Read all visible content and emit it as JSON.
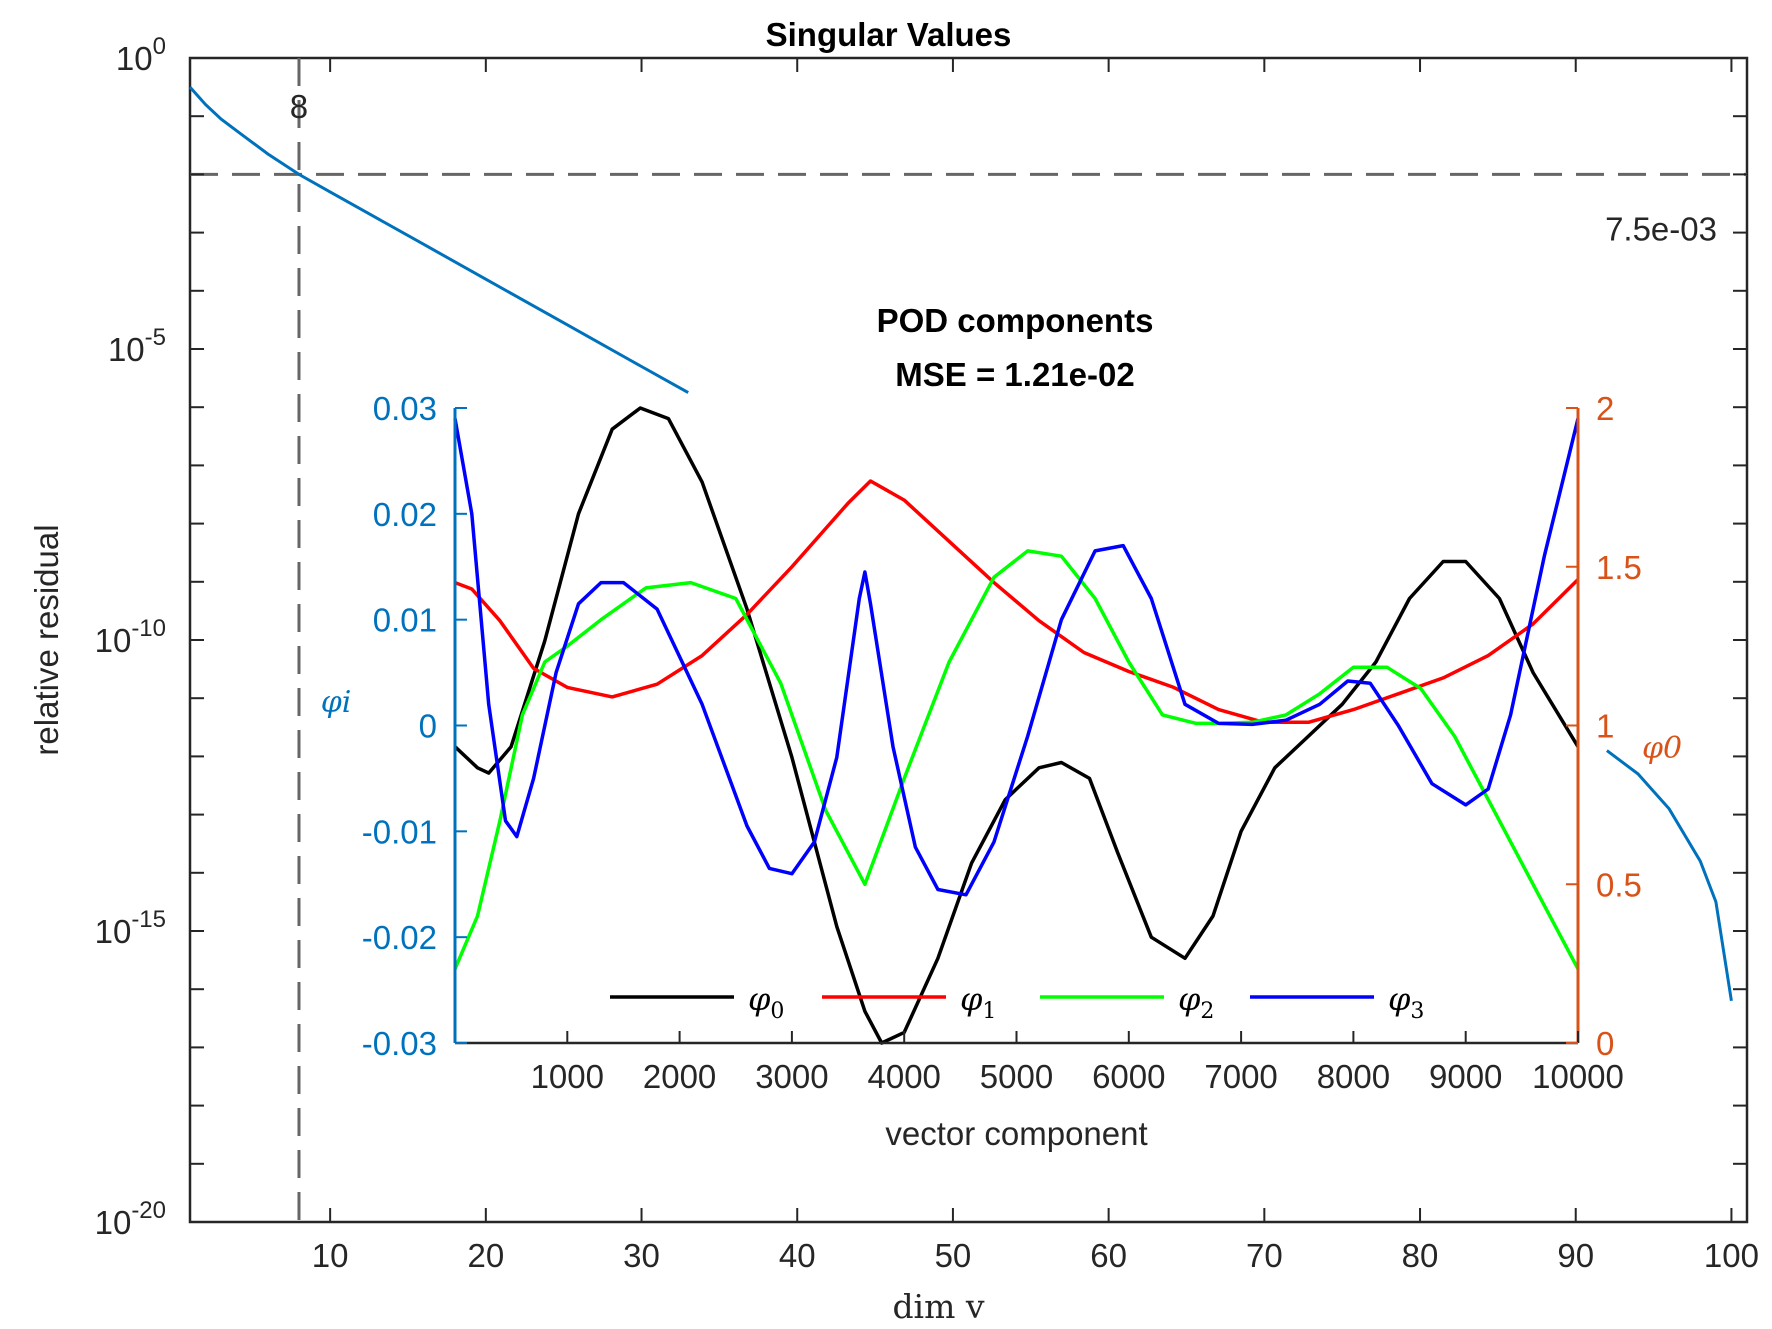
{
  "chart_data": [
    {
      "type": "line",
      "title": "Singular Values",
      "xlabel": "dim v",
      "ylabel": "relative residual",
      "xlim": [
        1,
        101
      ],
      "ylim_log10": [
        -20,
        0
      ],
      "yscale": "log",
      "grid": false,
      "xticks": [
        10,
        20,
        30,
        40,
        50,
        60,
        70,
        80,
        90,
        100
      ],
      "yticks": [
        {
          "base": "10",
          "exp": "0",
          "value": 1
        },
        {
          "base": "10",
          "exp": "-5",
          "value": 1e-05
        },
        {
          "base": "10",
          "exp": "-10",
          "value": 1e-10
        },
        {
          "base": "10",
          "exp": "-15",
          "value": 1e-15
        },
        {
          "base": "10",
          "exp": "-20",
          "value": 1e-20
        }
      ],
      "series": [
        {
          "color": "#0072BD",
          "x": [
            1,
            2,
            3,
            4,
            5,
            6,
            8,
            10,
            13,
            16,
            20,
            25,
            30,
            33
          ],
          "log10_y": [
            -0.5,
            -0.8,
            -1.05,
            -1.25,
            -1.45,
            -1.65,
            -2.0,
            -2.3,
            -2.75,
            -3.2,
            -3.8,
            -4.55,
            -5.3,
            -5.75
          ]
        },
        {
          "color": "#0072BD",
          "x": [
            92,
            94,
            96,
            98,
            99,
            100
          ],
          "log10_y": [
            -11.9,
            -12.3,
            -12.9,
            -13.8,
            -14.5,
            -16.2
          ]
        }
      ],
      "threshold": {
        "value_label": "7.5e-03",
        "log10_y": -2.0
      },
      "marker": {
        "label": "8",
        "x": 8
      }
    },
    {
      "type": "line",
      "title_line1": "POD components",
      "title_line2": "MSE = 1.21e-02",
      "xlabel": "vector component",
      "ylabel_left": "φi",
      "ylabel_right": "φ0",
      "xlim": [
        0,
        10000
      ],
      "ylim_left": [
        -0.03,
        0.03
      ],
      "ylim_right": [
        0,
        2
      ],
      "xticks": [
        1000,
        2000,
        3000,
        4000,
        5000,
        6000,
        7000,
        8000,
        9000,
        10000
      ],
      "yticks_left": [
        "-0.03",
        "-0.02",
        "-0.01",
        "0",
        "0.01",
        "0.02",
        "0.03"
      ],
      "yticks_right": [
        "0",
        "0.5",
        "1",
        "1.5",
        "2"
      ],
      "left_color": "#0072BD",
      "right_color": "#D95319",
      "legend": {
        "position": "bottom",
        "entries": [
          {
            "base": "φ",
            "sub": "0",
            "color": "#000000"
          },
          {
            "base": "φ",
            "sub": "1",
            "color": "#FF0000"
          },
          {
            "base": "φ",
            "sub": "2",
            "color": "#00FF00"
          },
          {
            "base": "φ",
            "sub": "3",
            "color": "#0000FF"
          }
        ]
      },
      "series": [
        {
          "color": "#000000",
          "x": [
            0,
            200,
            300,
            500,
            800,
            1100,
            1400,
            1650,
            1900,
            2200,
            2600,
            3000,
            3400,
            3650,
            3800,
            4000,
            4300,
            4600,
            4900,
            5200,
            5400,
            5650,
            5900,
            6200,
            6500,
            6750,
            7000,
            7300,
            7600,
            7900,
            8200,
            8500,
            8800,
            9000,
            9300,
            9600,
            10000
          ],
          "y": [
            -0.002,
            -0.004,
            -0.0045,
            -0.002,
            0.008,
            0.02,
            0.028,
            0.03,
            0.029,
            0.023,
            0.011,
            -0.003,
            -0.019,
            -0.027,
            -0.03,
            -0.029,
            -0.022,
            -0.013,
            -0.007,
            -0.004,
            -0.0035,
            -0.005,
            -0.012,
            -0.02,
            -0.022,
            -0.018,
            -0.01,
            -0.004,
            -0.001,
            0.002,
            0.006,
            0.012,
            0.0155,
            0.0155,
            0.012,
            0.005,
            -0.002
          ]
        },
        {
          "color": "#FF0000",
          "x": [
            0,
            150,
            400,
            700,
            1000,
            1400,
            1800,
            2200,
            2600,
            3000,
            3300,
            3500,
            3700,
            4000,
            4400,
            4800,
            5200,
            5600,
            6000,
            6400,
            6800,
            7200,
            7600,
            8000,
            8400,
            8800,
            9200,
            9600,
            10000
          ],
          "y": [
            1.45,
            1.43,
            1.33,
            1.18,
            1.12,
            1.09,
            1.13,
            1.22,
            1.35,
            1.5,
            1.62,
            1.7,
            1.77,
            1.71,
            1.58,
            1.45,
            1.33,
            1.23,
            1.17,
            1.12,
            1.05,
            1.01,
            1.01,
            1.05,
            1.1,
            1.15,
            1.22,
            1.32,
            1.46
          ]
        },
        {
          "color": "#00FF00",
          "x": [
            0,
            200,
            400,
            600,
            800,
            1000,
            1300,
            1700,
            2100,
            2500,
            2900,
            3300,
            3650,
            4000,
            4400,
            4800,
            5100,
            5400,
            5700,
            6000,
            6300,
            6600,
            6800,
            7100,
            7400,
            7700,
            8000,
            8300,
            8600,
            8900,
            9200,
            9500,
            9800,
            10000
          ],
          "y": [
            -0.023,
            -0.018,
            -0.009,
            0.001,
            0.006,
            0.0075,
            0.01,
            0.013,
            0.0135,
            0.012,
            0.004,
            -0.008,
            -0.015,
            -0.005,
            0.006,
            0.014,
            0.0165,
            0.016,
            0.012,
            0.006,
            0.001,
            0.0002,
            0.0002,
            0.0003,
            0.001,
            0.003,
            0.0055,
            0.0055,
            0.0035,
            -0.001,
            -0.007,
            -0.013,
            -0.019,
            -0.023
          ]
        },
        {
          "color": "#0000FF",
          "x": [
            0,
            150,
            300,
            450,
            550,
            700,
            900,
            1100,
            1300,
            1500,
            1800,
            2200,
            2600,
            2800,
            3000,
            3200,
            3400,
            3600,
            3650,
            3700,
            3900,
            4100,
            4300,
            4550,
            4800,
            5100,
            5400,
            5700,
            5950,
            6200,
            6500,
            6800,
            7100,
            7400,
            7700,
            7950,
            8150,
            8400,
            8700,
            9000,
            9200,
            9400,
            9700,
            10000
          ],
          "y": [
            0.029,
            0.02,
            0.002,
            -0.009,
            -0.0105,
            -0.005,
            0.005,
            0.0115,
            0.0135,
            0.0135,
            0.011,
            0.002,
            -0.0095,
            -0.0135,
            -0.014,
            -0.011,
            -0.003,
            0.012,
            0.0145,
            0.0115,
            -0.002,
            -0.0115,
            -0.0155,
            -0.016,
            -0.011,
            -0.001,
            0.01,
            0.0165,
            0.017,
            0.012,
            0.002,
            0.0002,
            0.0001,
            0.0005,
            0.002,
            0.0042,
            0.004,
            0.0,
            -0.0055,
            -0.0075,
            -0.006,
            0.001,
            0.016,
            0.029
          ]
        }
      ]
    }
  ]
}
